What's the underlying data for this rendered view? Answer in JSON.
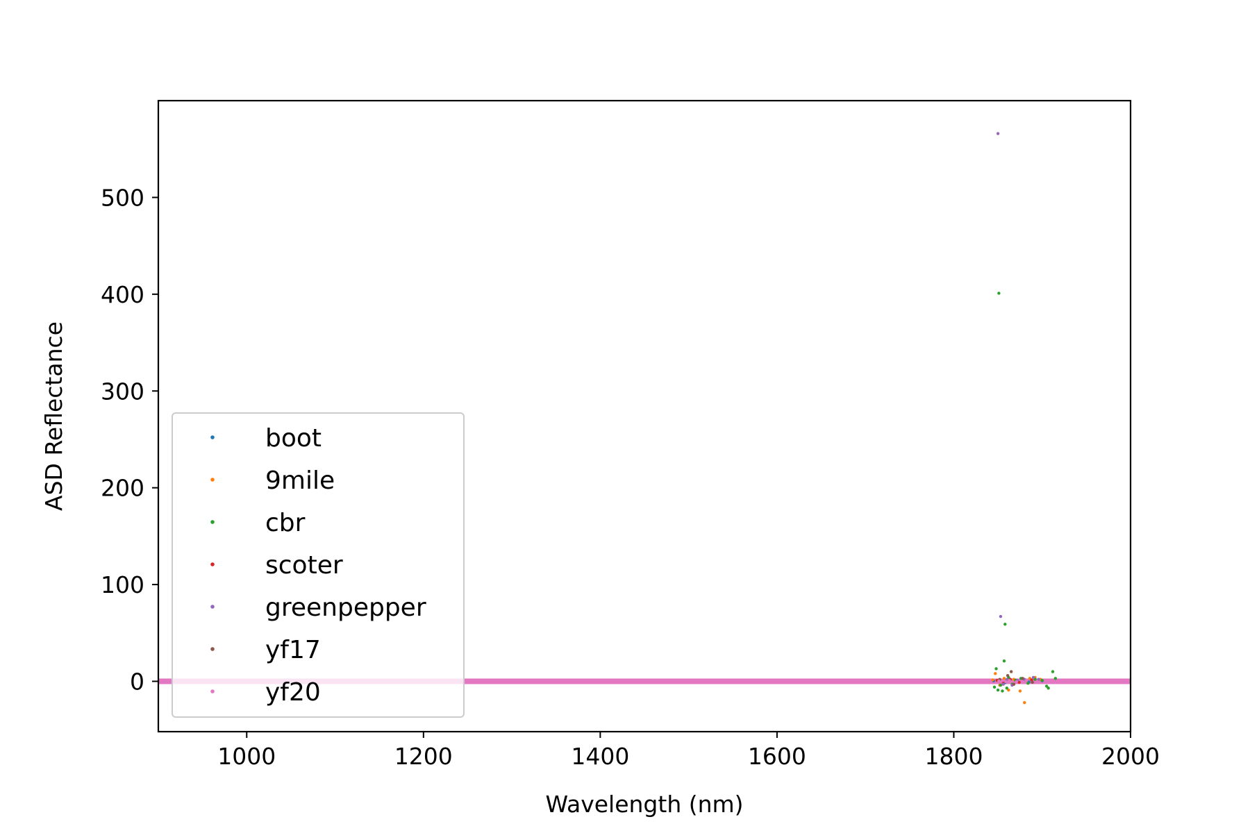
{
  "chart_data": {
    "type": "scatter",
    "title": "",
    "xlabel": "Wavelength (nm)",
    "ylabel": "ASD Reflectance",
    "xlim": [
      900,
      2000
    ],
    "ylim": [
      -52,
      600
    ],
    "xticks": [
      1000,
      1200,
      1400,
      1600,
      1800,
      2000
    ],
    "yticks": [
      0,
      100,
      200,
      300,
      400,
      500
    ],
    "grid": false,
    "legend_position": "lower-left",
    "series": [
      {
        "name": "boot",
        "color": "#1f77b4",
        "points": [
          [
            1845,
            0.5
          ],
          [
            1858,
            -1.5
          ],
          [
            1870,
            1.2
          ],
          [
            1885,
            -0.8
          ],
          [
            1900,
            0.6
          ]
        ]
      },
      {
        "name": "9mile",
        "color": "#ff7f0e",
        "points": [
          [
            1844,
            1.5
          ],
          [
            1847,
            8
          ],
          [
            1852,
            -4
          ],
          [
            1857,
            3
          ],
          [
            1862,
            -9
          ],
          [
            1868,
            2
          ],
          [
            1875,
            -10
          ],
          [
            1880,
            -22
          ],
          [
            1886,
            3
          ],
          [
            1892,
            4
          ],
          [
            1898,
            2
          ]
        ]
      },
      {
        "name": "cbr",
        "color": "#2ca02c",
        "points": [
          [
            1846,
            -6
          ],
          [
            1848,
            13
          ],
          [
            1850,
            -9
          ],
          [
            1851,
            401
          ],
          [
            1853,
            -4
          ],
          [
            1855,
            -10
          ],
          [
            1857,
            21
          ],
          [
            1858,
            59
          ],
          [
            1860,
            -7
          ],
          [
            1862,
            4
          ],
          [
            1866,
            -3
          ],
          [
            1870,
            1
          ],
          [
            1876,
            3
          ],
          [
            1884,
            -2
          ],
          [
            1892,
            2
          ],
          [
            1900,
            1
          ],
          [
            1905,
            -5
          ],
          [
            1907,
            -7
          ],
          [
            1912,
            10
          ],
          [
            1915,
            3
          ]
        ]
      },
      {
        "name": "scoter",
        "color": "#d62728",
        "points": [
          [
            1849,
            1
          ],
          [
            1856,
            -2
          ],
          [
            1864,
            2
          ],
          [
            1874,
            -1
          ],
          [
            1888,
            1.5
          ]
        ]
      },
      {
        "name": "greenpepper",
        "color": "#9467bd",
        "points": [
          [
            1850,
            566
          ],
          [
            1853,
            67
          ],
          [
            1856,
            -3
          ],
          [
            1860,
            2
          ],
          [
            1866,
            -4
          ],
          [
            1872,
            1
          ],
          [
            1880,
            2
          ],
          [
            1890,
            4
          ],
          [
            1896,
            2
          ]
        ]
      },
      {
        "name": "yf17",
        "color": "#8c564b",
        "points": [
          [
            1852,
            2
          ],
          [
            1861,
            6
          ],
          [
            1865,
            10
          ],
          [
            1868,
            -3
          ],
          [
            1878,
            3
          ],
          [
            1889,
            -1
          ]
        ]
      },
      {
        "name": "yf20",
        "color": "#e377c2",
        "points": [
          [
            1851,
            0.3
          ],
          [
            1859,
            -0.5
          ],
          [
            1863,
            0.8
          ],
          [
            1871,
            -0.4
          ],
          [
            1882,
            0.6
          ],
          [
            1894,
            -0.3
          ]
        ]
      }
    ],
    "band": {
      "color": "#e377c2",
      "x_range": [
        900,
        2000
      ],
      "y": 0
    }
  }
}
